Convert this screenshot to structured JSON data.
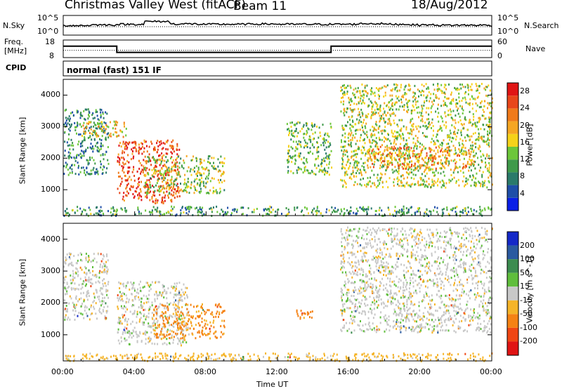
{
  "header": {
    "station": "Christmas Valley West (fitACF)",
    "beam": "Beam 11",
    "date": "18/Aug/2012"
  },
  "strip_labels": {
    "nsky": "N.Sky",
    "nsky_ticks": [
      "10^5",
      "10^0"
    ],
    "nsearch": "N.Search",
    "nsearch_ticks": [
      "10^5",
      "10^0"
    ],
    "freq_line1": "Freq.",
    "freq_line2": "[MHz]",
    "freq_ticks": [
      "18",
      "8"
    ],
    "nave": "Nave",
    "nave_ticks": [
      "60",
      "0"
    ],
    "cpid": "CPID",
    "cpid_value": "normal (fast) 151 IF"
  },
  "chart_data": [
    {
      "type": "heatmap",
      "title": "",
      "xlabel": "Time UT",
      "ylabel": "Slant Range [km]",
      "xlim": [
        "00:00",
        "24:00"
      ],
      "ylim": [
        180,
        4500
      ],
      "x_ticks": [
        "00:00",
        "04:00",
        "08:00",
        "12:00",
        "16:00",
        "20:00",
        "00:00"
      ],
      "y_ticks": [
        1000,
        2000,
        3000,
        4000
      ],
      "colorbar": {
        "label": "Power [dB]",
        "ticks": [
          4,
          8,
          12,
          16,
          20,
          24,
          28
        ],
        "range": [
          0,
          30
        ],
        "colors": [
          "#0a1fe6",
          "#1e4ea8",
          "#2a7a6a",
          "#3f9a4a",
          "#6cc63a",
          "#f5d21a",
          "#f5a623",
          "#f07a1a",
          "#e8461a",
          "#e01414"
        ]
      },
      "regions": [
        {
          "name": "ground scatter",
          "t_start": 0.0,
          "t_end": 24.0,
          "range_start": 200,
          "range_end": 500,
          "level": 10
        },
        {
          "name": "nightside echoes",
          "t_start": 0.0,
          "t_end": 2.5,
          "range_start": 1500,
          "range_end": 3600,
          "level": 9
        },
        {
          "name": "dawn patch",
          "t_start": 1.0,
          "t_end": 3.5,
          "range_start": 2700,
          "range_end": 3200,
          "level": 18
        },
        {
          "name": "morning arc",
          "t_start": 3.0,
          "t_end": 6.5,
          "range_start": 600,
          "range_end": 2600,
          "level": 25
        },
        {
          "name": "morning band",
          "t_start": 4.5,
          "t_end": 9.0,
          "range_start": 900,
          "range_end": 2100,
          "level": 14
        },
        {
          "name": "midday streak",
          "t_start": 12.5,
          "t_end": 15.0,
          "range_start": 1500,
          "range_end": 3200,
          "level": 12
        },
        {
          "name": "afternoon arc",
          "t_start": 15.5,
          "t_end": 24.0,
          "range_start": 1100,
          "range_end": 4400,
          "level": 15
        },
        {
          "name": "evening core",
          "t_start": 17.0,
          "t_end": 23.0,
          "range_start": 1700,
          "range_end": 2400,
          "level": 21
        }
      ]
    },
    {
      "type": "heatmap",
      "title": "",
      "xlabel": "Time UT",
      "ylabel": "Slant Range [km]",
      "xlim": [
        "00:00",
        "24:00"
      ],
      "ylim": [
        180,
        4500
      ],
      "x_ticks": [
        "00:00",
        "04:00",
        "08:00",
        "12:00",
        "16:00",
        "20:00",
        "00:00"
      ],
      "y_ticks": [
        1000,
        2000,
        3000,
        4000
      ],
      "colorbar": {
        "label": "Velocity [m s^-1]",
        "ticks": [
          200,
          100,
          50,
          15,
          -15,
          -50,
          -100,
          -200
        ],
        "colors": [
          "#1428c8",
          "#2a5aa0",
          "#3c8c50",
          "#5fbe3c",
          "#c8c8c8",
          "#f5b428",
          "#f58214",
          "#f04614",
          "#e01414"
        ]
      },
      "regions": [
        {
          "name": "ground scatter",
          "t_start": 0.0,
          "t_end": 24.0,
          "range_start": 200,
          "range_end": 450,
          "velocity": -30
        },
        {
          "name": "nightside echoes",
          "t_start": 0.0,
          "t_end": 2.5,
          "range_start": 1500,
          "range_end": 3600,
          "velocity": 0
        },
        {
          "name": "morning arc",
          "t_start": 3.0,
          "t_end": 7.0,
          "range_start": 700,
          "range_end": 2700,
          "velocity": 0
        },
        {
          "name": "morning band",
          "t_start": 5.0,
          "t_end": 9.0,
          "range_start": 900,
          "range_end": 2000,
          "velocity": -60
        },
        {
          "name": "midday patch",
          "t_start": 13.0,
          "t_end": 14.2,
          "range_start": 1500,
          "range_end": 1800,
          "velocity": -80
        },
        {
          "name": "afternoon arc",
          "t_start": 15.5,
          "t_end": 24.0,
          "range_start": 1100,
          "range_end": 4400,
          "velocity": 0
        }
      ]
    },
    {
      "type": "line",
      "title": "",
      "series": [
        {
          "name": "N.Sky",
          "values_log10": [
            2.2,
            2.4,
            2.6,
            3.5,
            2.7,
            2.6,
            2.6,
            2.7,
            2.6,
            2.6,
            2.6,
            2.8,
            2.6,
            2.4,
            2.3,
            2.3
          ]
        },
        {
          "name": "Freq",
          "unit": "MHz",
          "breakpoints_h": [
            0,
            3,
            15,
            24
          ],
          "values": [
            14,
            10,
            14
          ]
        },
        {
          "name": "Nave",
          "values": [
            20,
            20
          ]
        }
      ]
    }
  ]
}
